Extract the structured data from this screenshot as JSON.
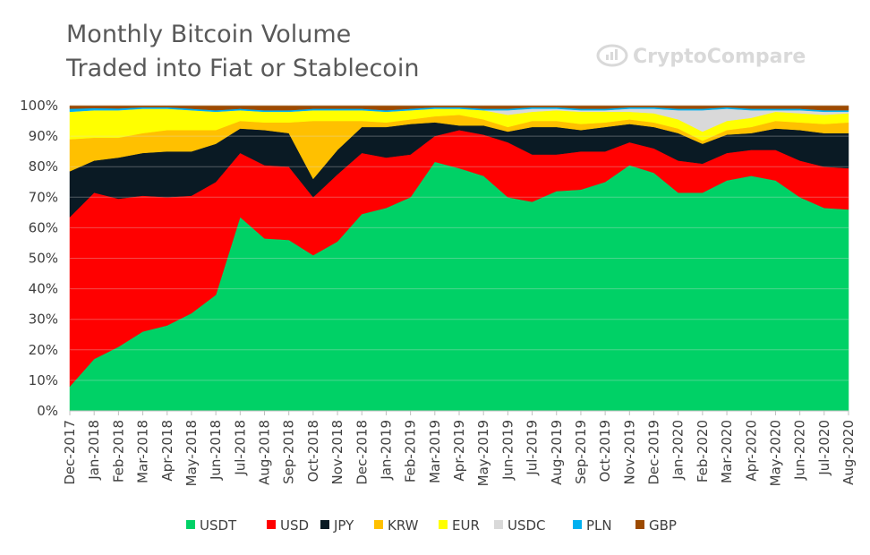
{
  "chart_data": {
    "type": "area",
    "stacked": true,
    "normalized": true,
    "title_lines": [
      "Monthly Bitcoin Volume",
      "Traded into Fiat or Stablecoin"
    ],
    "watermark": "CryptoCompare",
    "ylim": [
      0,
      100
    ],
    "y_ticks": [
      "0%",
      "10%",
      "20%",
      "30%",
      "40%",
      "50%",
      "60%",
      "70%",
      "80%",
      "90%",
      "100%"
    ],
    "categories": [
      "Dec-2017",
      "Jan-2018",
      "Feb-2018",
      "Mar-2018",
      "Apr-2018",
      "May-2018",
      "Jun-2018",
      "Jul-2018",
      "Aug-2018",
      "Sep-2018",
      "Oct-2018",
      "Nov-2018",
      "Dec-2018",
      "Jan-2019",
      "Feb-2019",
      "Mar-2019",
      "Apr-2019",
      "May-2019",
      "Jun-2019",
      "Jul-2019",
      "Aug-2019",
      "Sep-2019",
      "Oct-2019",
      "Nov-2019",
      "Dec-2019",
      "Jan-2020",
      "Feb-2020",
      "Mar-2020",
      "Apr-2020",
      "May-2020",
      "Jun-2020",
      "Jul-2020",
      "Aug-2020"
    ],
    "legend_position": "bottom",
    "series": [
      {
        "name": "USDT",
        "color": "#00d166",
        "values": [
          8,
          17,
          21,
          26,
          28,
          32,
          38,
          63.5,
          56.5,
          56,
          51,
          55.5,
          64.5,
          66.5,
          70,
          82,
          79.5,
          77,
          70,
          68.5,
          72,
          72.5,
          75,
          80.5,
          78,
          71.5,
          71.5,
          75.5,
          77,
          75.5,
          70,
          66.5,
          66
        ]
      },
      {
        "name": "USD",
        "color": "#ff0000",
        "values": [
          55.5,
          54.5,
          48.5,
          44.5,
          42,
          38.5,
          37,
          21,
          24,
          24,
          19,
          22,
          20,
          16.5,
          14,
          8.5,
          12.5,
          13.5,
          18,
          15.5,
          12,
          12.5,
          10,
          7.5,
          8,
          10.5,
          9.5,
          9,
          8.5,
          10,
          12,
          13.5,
          13.5
        ]
      },
      {
        "name": "JPY",
        "color": "#0a1a24",
        "values": [
          15,
          10.5,
          13.5,
          14,
          15,
          14.5,
          12.5,
          8,
          11.5,
          11,
          6,
          8,
          8.5,
          10,
          10,
          4.5,
          1.5,
          3,
          3.5,
          9,
          9,
          7,
          8,
          6,
          7,
          9,
          6.5,
          6,
          5.5,
          7,
          10,
          11,
          11.5
        ]
      },
      {
        "name": "KRW",
        "color": "#ffc000",
        "values": [
          10.5,
          7.5,
          6.5,
          6.5,
          7,
          7,
          4.5,
          2.5,
          2.5,
          3.5,
          19,
          9.5,
          2,
          1.5,
          1.5,
          2,
          3.5,
          2,
          1.5,
          2,
          2,
          2,
          1.5,
          1.5,
          1.5,
          1.5,
          1,
          1.5,
          2,
          2.5,
          2.5,
          3,
          3.5
        ]
      },
      {
        "name": "EUR",
        "color": "#ffff00",
        "values": [
          9,
          9,
          9,
          8,
          7,
          6.5,
          6,
          3.5,
          3.5,
          3.5,
          3.5,
          3.5,
          3.5,
          3.5,
          3,
          2.5,
          2,
          3,
          4,
          3,
          3.5,
          4,
          3.5,
          2.5,
          3,
          3,
          3,
          3,
          3,
          3,
          3,
          3,
          3
        ]
      },
      {
        "name": "USDC",
        "color": "#d9d9d9",
        "values": [
          0,
          0,
          0,
          0,
          0,
          0,
          0,
          0,
          0,
          0,
          0,
          0,
          0,
          0,
          0,
          0,
          0,
          0,
          1.5,
          1,
          0.5,
          0.5,
          0.5,
          1,
          1.5,
          3,
          7,
          4,
          2.5,
          0.5,
          1,
          1,
          0.5
        ]
      },
      {
        "name": "PLN",
        "color": "#00b0f0",
        "values": [
          1,
          0.7,
          0.6,
          0.5,
          0.5,
          0.5,
          0.5,
          0.5,
          0.5,
          0.5,
          0.5,
          0.5,
          0.5,
          0.5,
          0.5,
          0.5,
          0.5,
          0.5,
          0.5,
          0.5,
          0.5,
          0.5,
          0.5,
          0.5,
          0.5,
          0.5,
          0.5,
          0.5,
          0.5,
          0.5,
          0.5,
          0.5,
          0.5
        ]
      },
      {
        "name": "GBP",
        "color": "#9c4a00",
        "values": [
          1,
          0.8,
          0.9,
          0.5,
          0.5,
          1,
          1.5,
          1,
          1.5,
          1.5,
          1,
          1,
          1,
          1.5,
          1,
          0.5,
          0.5,
          1,
          1,
          0.5,
          0.5,
          1,
          1,
          0.5,
          0.5,
          1,
          1,
          0.5,
          1,
          1,
          1,
          1.5,
          1.5
        ]
      }
    ]
  }
}
